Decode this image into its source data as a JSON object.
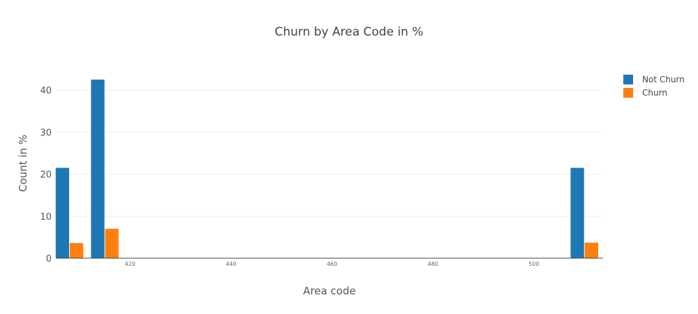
{
  "chart_data": {
    "type": "bar",
    "title": "Churn by Area Code in %",
    "xlabel": "Area code",
    "ylabel": "Count in %",
    "x": [
      408,
      415,
      510
    ],
    "xlim": [
      405.3,
      513.7
    ],
    "ylim": [
      0,
      46.5
    ],
    "x_ticks": [
      420,
      440,
      460,
      480,
      500
    ],
    "y_ticks": [
      0,
      10,
      20,
      30,
      40
    ],
    "grid": true,
    "legend_position": "top-right",
    "series": [
      {
        "name": "Not Churn",
        "color": "#1f77b4",
        "values": [
          21.5,
          42.5,
          21.5
        ]
      },
      {
        "name": "Churn",
        "color": "#ff7f0e",
        "values": [
          3.6,
          7.0,
          3.7
        ]
      }
    ]
  }
}
